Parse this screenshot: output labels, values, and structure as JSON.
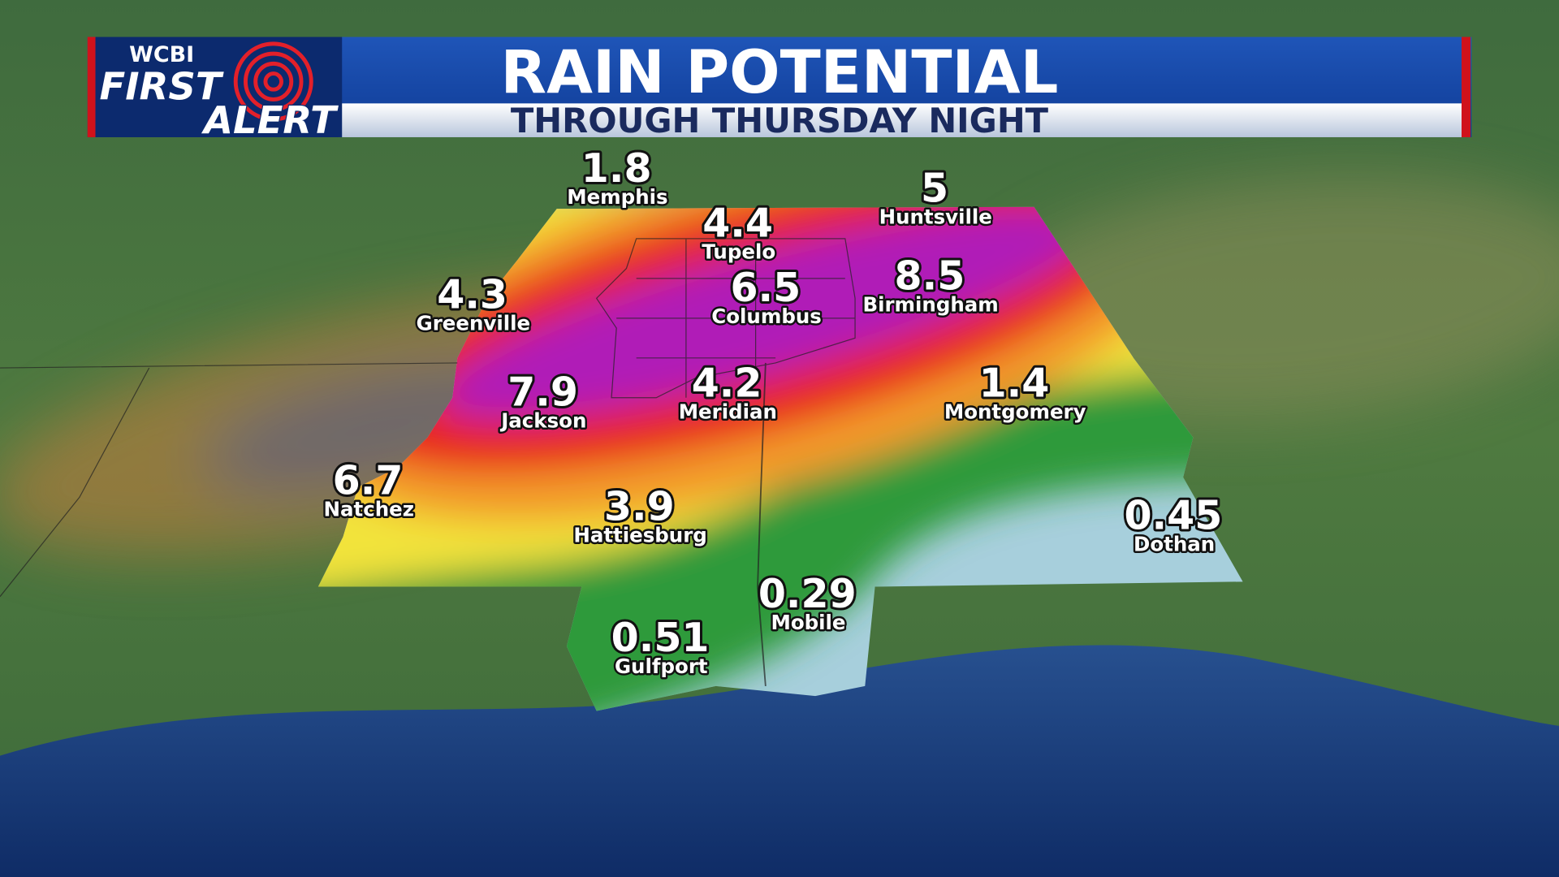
{
  "header": {
    "logo": {
      "station": "WCBI",
      "line1": "FIRST",
      "line2": "ALERT"
    },
    "title": "RAIN POTENTIAL",
    "subtitle": "THROUGH THURSDAY NIGHT"
  },
  "cities": [
    {
      "name": "Memphis",
      "value": 1.8
    },
    {
      "name": "Tupelo",
      "value": 4.4
    },
    {
      "name": "Huntsville",
      "value": 5
    },
    {
      "name": "Greenville",
      "value": 4.3
    },
    {
      "name": "Columbus",
      "value": 6.5
    },
    {
      "name": "Birmingham",
      "value": 8.5
    },
    {
      "name": "Jackson",
      "value": 7.9
    },
    {
      "name": "Meridian",
      "value": 4.2
    },
    {
      "name": "Montgomery",
      "value": 1.4
    },
    {
      "name": "Natchez",
      "value": 6.7
    },
    {
      "name": "Hattiesburg",
      "value": 3.9
    },
    {
      "name": "Dothan",
      "value": 0.45
    },
    {
      "name": "Mobile",
      "value": 0.29
    },
    {
      "name": "Gulfport",
      "value": 0.51
    }
  ]
}
